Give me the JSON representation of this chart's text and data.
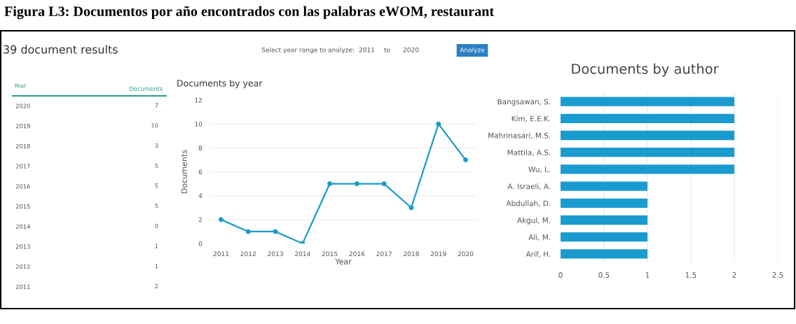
{
  "chart_data": [
    {
      "type": "other",
      "title": "Figura L3: Documentos por año encontrados con las palabras eWOM, restaurant",
      "annotations": [
        "39 document results",
        "Select year range to analyze:",
        "2011",
        "to",
        "2020",
        "Analyze"
      ]
    },
    {
      "type": "heatmap",
      "ylabel": "Year",
      "categories": [
        "Documents"
      ],
      "y_categories": [
        "2020",
        "2019",
        "2018",
        "2017",
        "2016",
        "2015",
        "2014",
        "2013",
        "2012",
        "2011"
      ],
      "cells": [
        [
          7
        ],
        [
          10
        ],
        [
          3
        ],
        [
          5
        ],
        [
          5
        ],
        [
          5
        ],
        [
          0
        ],
        [
          1
        ],
        [
          1
        ],
        [
          2
        ]
      ],
      "data_labels": true
    },
    {
      "type": "line",
      "title": "Documents by year",
      "xlabel": "Year",
      "ylabel": "Documents",
      "categories": [
        "2011",
        "2012",
        "2013",
        "2014",
        "2015",
        "2016",
        "2017",
        "2018",
        "2019",
        "2020"
      ],
      "values": [
        2,
        1,
        1,
        0,
        5,
        5,
        5,
        3,
        10,
        7
      ],
      "color": "#1a9bc9",
      "marker": "circle",
      "line_style": "solid",
      "ylim": [
        0,
        12
      ],
      "yticks": [
        0,
        2,
        4,
        6,
        8,
        10,
        12
      ],
      "grid": "y"
    },
    {
      "type": "bar",
      "orientation": "horizontal",
      "title": "Documents by author",
      "categories": [
        "Bangsawan, S.",
        "Kim, E.E.K.",
        "Mahrinasari, M.S.",
        "Mattila, A.S.",
        "Wu, L.",
        "A. Israeli, A.",
        "Abdullah, D.",
        "Akgul, M.",
        "Ali, M.",
        "Arif, H."
      ],
      "values": [
        2,
        2,
        2,
        2,
        2,
        1,
        1,
        1,
        1,
        1
      ],
      "color": "#1a9bd0",
      "xlim": [
        0,
        2.5
      ],
      "xticks": [
        0,
        0.5,
        1,
        1.5,
        2,
        2.5
      ],
      "grid": "x"
    }
  ]
}
